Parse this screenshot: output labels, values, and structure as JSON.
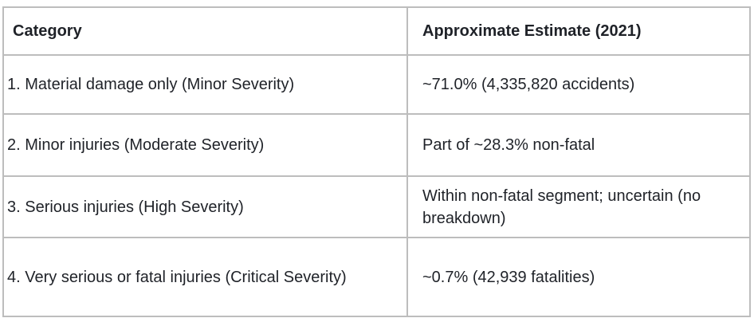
{
  "chart_data": {
    "type": "table",
    "title": "",
    "columns": [
      "Category",
      "Approximate Estimate (2021)"
    ],
    "rows": [
      [
        "1. Material damage only (Minor Severity)",
        "~71.0% (4,335,820 accidents)"
      ],
      [
        "2. Minor injuries (Moderate Severity)",
        "Part of ~28.3% non-fatal"
      ],
      [
        "3. Serious injuries (High Severity)",
        "Within non-fatal segment; uncertain (no breakdown)"
      ],
      [
        "4. Very serious or fatal injuries (Critical Severity)",
        "~0.7% (42,939 fatalities)"
      ]
    ],
    "layout": {
      "grid": "full-borders",
      "header_style": "bold",
      "background": "#ffffff"
    },
    "colors": {
      "border": "#bdbdbd",
      "text": "#1f2228",
      "background": "#ffffff"
    }
  }
}
